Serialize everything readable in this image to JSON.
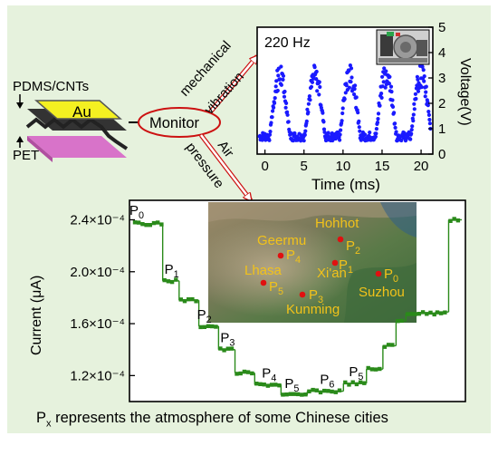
{
  "device": {
    "layer_top_label": "PDMS/CNTs",
    "electrode_label": "Au",
    "layer_bottom_label": "PET",
    "colors": {
      "electrode": "#f4f021",
      "dark_layer": "#404040",
      "substrate": "#d873c9"
    }
  },
  "monitor": {
    "label": "Monitor",
    "ring_color": "#cc1111"
  },
  "arrows": {
    "upper_line1": "mechanical",
    "upper_line2": "vibration",
    "lower_line1": "Air",
    "lower_line2": "pressure",
    "arrow_color": "#cc1111"
  },
  "vibration_chart": {
    "chart_data": {
      "type": "scatter",
      "title": "220 Hz",
      "xlabel": "Time (ms)",
      "ylabel": "Voltage(V)",
      "xlim": [
        -1,
        21.5
      ],
      "ylim": [
        0,
        5
      ],
      "x_ticks": [
        "0",
        "5",
        "10",
        "15",
        "20"
      ],
      "x_tick_values": [
        0,
        5,
        10,
        15,
        20
      ],
      "y_ticks": [
        "0",
        "1",
        "2",
        "3",
        "4",
        "5"
      ],
      "y_tick_values": [
        0,
        1,
        2,
        3,
        4,
        5
      ],
      "y_axis_side": "right",
      "color": "#1a1aff",
      "frequency_hz": 220,
      "low_level_v": 0.7,
      "high_level_v": 3.0,
      "peak_level_v": 3.5,
      "cycles_start_ms": [
        0.6,
        5.1,
        9.6,
        14.2,
        18.7
      ],
      "high_duration_ms": 2.6
    }
  },
  "pressure_chart": {
    "chart_data": {
      "type": "line",
      "ylabel": "Current (μA)",
      "ylim": [
        0.0001,
        0.000255
      ],
      "y_ticks": [
        "2.4×10⁻⁴",
        "2.0×10⁻⁴",
        "1.6×10⁻⁴",
        "1.2×10⁻⁴"
      ],
      "y_tick_values": [
        0.00024,
        0.0002,
        0.00016,
        0.00012
      ],
      "color": "#2a8a1a",
      "x_range": [
        0,
        100
      ],
      "steps": [
        {
          "label": "P",
          "sub": "0",
          "x0": 0,
          "x1": 9,
          "value": 0.000237
        },
        {
          "label": "P",
          "sub": "1",
          "x0": 9,
          "x1": 14,
          "value": 0.000193
        },
        {
          "label": "P",
          "sub": "1",
          "x0": 14,
          "x1": 20,
          "value": 0.000178
        },
        {
          "label": "P",
          "sub": "2",
          "x0": 20,
          "x1": 26,
          "value": 0.000158
        },
        {
          "label": "P",
          "sub": "3",
          "x0": 26,
          "x1": 31,
          "value": 0.00014
        },
        {
          "label": "P",
          "sub": "3",
          "x0": 31,
          "x1": 37,
          "value": 0.000122
        },
        {
          "label": "P",
          "sub": "4",
          "x0": 37,
          "x1": 45,
          "value": 0.000113
        },
        {
          "label": "P",
          "sub": "5",
          "x0": 45,
          "x1": 53,
          "value": 0.000105
        },
        {
          "label": "P",
          "sub": "6",
          "x0": 53,
          "x1": 64,
          "value": 0.000108
        },
        {
          "label": "P",
          "sub": "5",
          "x0": 64,
          "x1": 71,
          "value": 0.000114
        },
        {
          "label": "P",
          "sub": "5",
          "x0": 71,
          "x1": 76,
          "value": 0.000125
        },
        {
          "label": "",
          "sub": "",
          "x0": 76,
          "x1": 80,
          "value": 0.000143
        },
        {
          "label": "",
          "sub": "",
          "x0": 80,
          "x1": 83,
          "value": 0.000162
        },
        {
          "label": "",
          "sub": "",
          "x0": 83,
          "x1": 92,
          "value": 0.000168
        },
        {
          "label": "",
          "sub": "",
          "x0": 92,
          "x1": 96,
          "value": 0.000169
        },
        {
          "label": "",
          "sub": "",
          "x0": 96,
          "x1": 100,
          "value": 0.00024
        }
      ],
      "step_labels": [
        {
          "text": "P",
          "sub": "0"
        },
        {
          "text": "P",
          "sub": "1"
        },
        {
          "text": "P",
          "sub": "2"
        },
        {
          "text": "P",
          "sub": "3"
        },
        {
          "text": "P",
          "sub": "4"
        },
        {
          "text": "P",
          "sub": "5"
        },
        {
          "text": "P",
          "sub": "6"
        },
        {
          "text": "P",
          "sub": "5"
        }
      ]
    }
  },
  "map": {
    "cities": [
      {
        "name": "Hohhot",
        "point": "P",
        "sub": "2"
      },
      {
        "name": "Geermu",
        "point": "P",
        "sub": "4"
      },
      {
        "name": "Xi'an",
        "point": "P",
        "sub": "1"
      },
      {
        "name": "Lhasa",
        "point": "P",
        "sub": "5"
      },
      {
        "name": "Suzhou",
        "point": "P",
        "sub": "0"
      },
      {
        "name": "Kunming",
        "point": "P",
        "sub": "3"
      }
    ],
    "dot_color": "#e01010",
    "label_color": "#f2c21a"
  },
  "caption": {
    "prefix": "P",
    "sub": "x",
    "rest": " represents the atmosphere of some Chinese cities"
  }
}
